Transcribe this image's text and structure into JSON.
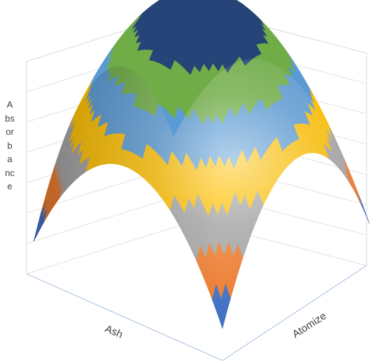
{
  "chart_data": {
    "type": "surface",
    "title": "",
    "xlabel": "Ash",
    "ylabel": "Atomize",
    "zlabel": "Absorbance",
    "ylabel_orientation": "stacked-vertical",
    "grid": true,
    "legend": "none",
    "surface_shape": "dome",
    "bands": [
      {
        "index": 1,
        "color": "#4472c4"
      },
      {
        "index": 2,
        "color": "#ed7d31"
      },
      {
        "index": 3,
        "color": "#a5a5a5"
      },
      {
        "index": 4,
        "color": "#ffc000"
      },
      {
        "index": 5,
        "color": "#5b9bd5"
      },
      {
        "index": 6,
        "color": "#70ad47"
      },
      {
        "index": 7,
        "color": "#264478"
      }
    ],
    "colors": {
      "frame": "#d9d9d9",
      "gridline": "#e3e3e3",
      "floor_axis": "#b4c7e7",
      "text": "#404040"
    }
  }
}
